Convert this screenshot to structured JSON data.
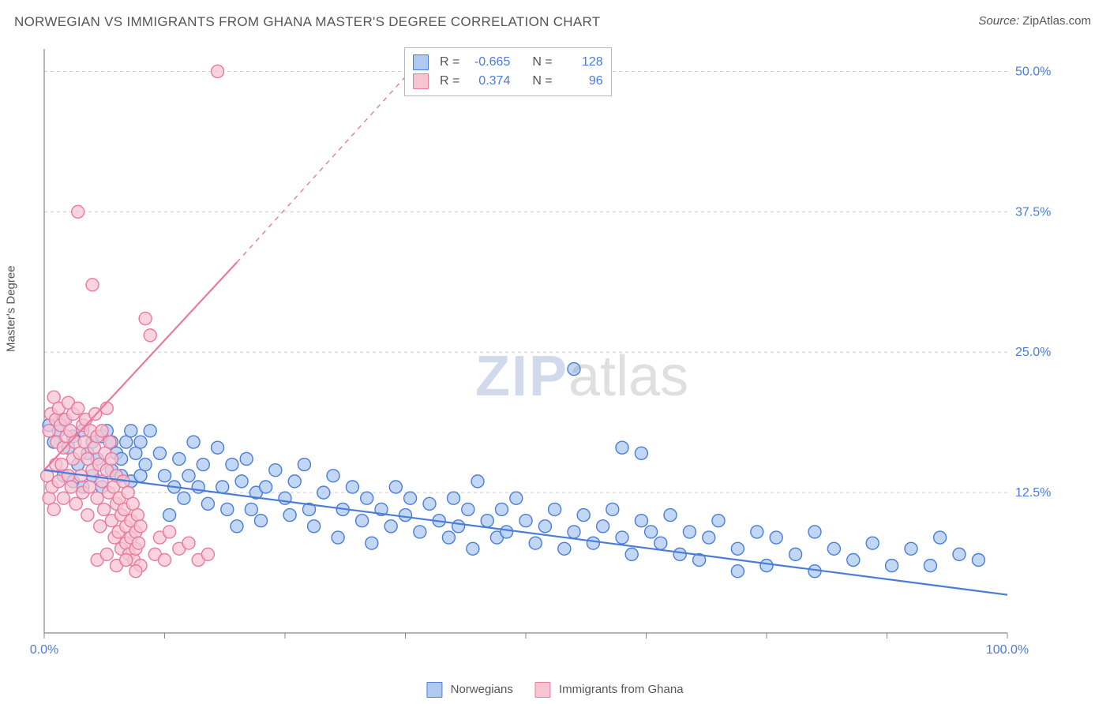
{
  "title": "NORWEGIAN VS IMMIGRANTS FROM GHANA MASTER'S DEGREE CORRELATION CHART",
  "source_label": "Source:",
  "source_value": "ZipAtlas.com",
  "ylabel": "Master's Degree",
  "watermark_a": "ZIP",
  "watermark_b": "atlas",
  "chart": {
    "type": "scatter",
    "background_color": "#ffffff",
    "grid_color": "#cccccc",
    "axis_color": "#888888",
    "xlim": [
      0,
      100
    ],
    "ylim": [
      0,
      52
    ],
    "x_ticks": [
      0,
      12.5,
      25,
      37.5,
      50,
      62.5,
      75,
      87.5,
      100
    ],
    "y_grid": [
      12.5,
      25,
      37.5,
      50
    ],
    "y_tick_labels": [
      "12.5%",
      "25.0%",
      "37.5%",
      "50.0%"
    ],
    "x_corner_labels": [
      "0.0%",
      "100.0%"
    ],
    "marker_radius": 8,
    "marker_stroke_width": 1.4,
    "line_width": 2.2,
    "series": [
      {
        "name": "Norwegians",
        "color_fill": "#aecaf0",
        "color_stroke": "#4a7dd8",
        "R": "-0.665",
        "N": "128",
        "regression": {
          "x1": 0,
          "y1": 14.5,
          "x2": 100,
          "y2": 3.4,
          "dashed_extension": false
        },
        "points": [
          [
            0.5,
            18.5
          ],
          [
            1,
            17
          ],
          [
            1.5,
            18
          ],
          [
            2,
            19
          ],
          [
            2,
            14
          ],
          [
            2.5,
            16.5
          ],
          [
            3,
            17.5
          ],
          [
            3,
            13.5
          ],
          [
            3.5,
            15
          ],
          [
            4,
            18
          ],
          [
            4,
            13
          ],
          [
            4.5,
            16
          ],
          [
            5,
            17
          ],
          [
            5,
            14
          ],
          [
            5.5,
            15.5
          ],
          [
            6,
            17.5
          ],
          [
            6,
            13
          ],
          [
            6.5,
            18
          ],
          [
            7,
            14.5
          ],
          [
            7,
            17
          ],
          [
            7.5,
            16
          ],
          [
            8,
            14
          ],
          [
            8,
            15.5
          ],
          [
            8.5,
            17
          ],
          [
            9,
            13.5
          ],
          [
            9,
            18
          ],
          [
            9.5,
            16
          ],
          [
            10,
            14
          ],
          [
            10,
            17
          ],
          [
            10.5,
            15
          ],
          [
            11,
            18
          ],
          [
            12,
            16
          ],
          [
            12.5,
            14
          ],
          [
            13,
            10.5
          ],
          [
            13.5,
            13
          ],
          [
            14,
            15.5
          ],
          [
            14.5,
            12
          ],
          [
            15,
            14
          ],
          [
            15.5,
            17
          ],
          [
            16,
            13
          ],
          [
            16.5,
            15
          ],
          [
            17,
            11.5
          ],
          [
            18,
            16.5
          ],
          [
            18.5,
            13
          ],
          [
            19,
            11
          ],
          [
            19.5,
            15
          ],
          [
            20,
            9.5
          ],
          [
            20.5,
            13.5
          ],
          [
            21,
            15.5
          ],
          [
            21.5,
            11
          ],
          [
            22,
            12.5
          ],
          [
            22.5,
            10
          ],
          [
            23,
            13
          ],
          [
            24,
            14.5
          ],
          [
            25,
            12
          ],
          [
            25.5,
            10.5
          ],
          [
            26,
            13.5
          ],
          [
            27,
            15
          ],
          [
            27.5,
            11
          ],
          [
            28,
            9.5
          ],
          [
            29,
            12.5
          ],
          [
            30,
            14
          ],
          [
            30.5,
            8.5
          ],
          [
            31,
            11
          ],
          [
            32,
            13
          ],
          [
            33,
            10
          ],
          [
            33.5,
            12
          ],
          [
            34,
            8
          ],
          [
            35,
            11
          ],
          [
            36,
            9.5
          ],
          [
            36.5,
            13
          ],
          [
            37.5,
            10.5
          ],
          [
            38,
            12
          ],
          [
            39,
            9
          ],
          [
            40,
            11.5
          ],
          [
            41,
            10
          ],
          [
            42,
            8.5
          ],
          [
            42.5,
            12
          ],
          [
            43,
            9.5
          ],
          [
            44,
            11
          ],
          [
            44.5,
            7.5
          ],
          [
            45,
            13.5
          ],
          [
            46,
            10
          ],
          [
            47,
            8.5
          ],
          [
            47.5,
            11
          ],
          [
            48,
            9
          ],
          [
            49,
            12
          ],
          [
            50,
            10
          ],
          [
            51,
            8
          ],
          [
            52,
            9.5
          ],
          [
            53,
            11
          ],
          [
            54,
            7.5
          ],
          [
            55,
            9
          ],
          [
            55,
            23.5
          ],
          [
            56,
            10.5
          ],
          [
            57,
            8
          ],
          [
            58,
            9.5
          ],
          [
            59,
            11
          ],
          [
            60,
            16.5
          ],
          [
            60,
            8.5
          ],
          [
            61,
            7
          ],
          [
            62,
            10
          ],
          [
            62,
            16
          ],
          [
            63,
            9
          ],
          [
            64,
            8
          ],
          [
            65,
            10.5
          ],
          [
            66,
            7
          ],
          [
            67,
            9
          ],
          [
            68,
            6.5
          ],
          [
            69,
            8.5
          ],
          [
            70,
            10
          ],
          [
            72,
            7.5
          ],
          [
            72,
            5.5
          ],
          [
            74,
            9
          ],
          [
            75,
            6
          ],
          [
            76,
            8.5
          ],
          [
            78,
            7
          ],
          [
            80,
            9
          ],
          [
            80,
            5.5
          ],
          [
            82,
            7.5
          ],
          [
            84,
            6.5
          ],
          [
            86,
            8
          ],
          [
            88,
            6
          ],
          [
            90,
            7.5
          ],
          [
            92,
            6
          ],
          [
            93,
            8.5
          ],
          [
            95,
            7
          ],
          [
            97,
            6.5
          ]
        ]
      },
      {
        "name": "Immigrants from Ghana",
        "color_fill": "#f7c4d2",
        "color_stroke": "#e87aa0",
        "R": "0.374",
        "N": "96",
        "regression": {
          "x1": 0,
          "y1": 14.5,
          "x2": 20,
          "y2": 33,
          "dashed_extension": true,
          "dash_x2": 38,
          "dash_y2": 50
        },
        "points": [
          [
            0.3,
            14
          ],
          [
            0.5,
            18
          ],
          [
            0.5,
            12
          ],
          [
            0.7,
            19.5
          ],
          [
            0.8,
            13
          ],
          [
            1,
            21
          ],
          [
            1,
            11
          ],
          [
            1.2,
            19
          ],
          [
            1.2,
            15
          ],
          [
            1.3,
            17
          ],
          [
            1.5,
            13.5
          ],
          [
            1.5,
            20
          ],
          [
            1.7,
            18.5
          ],
          [
            1.8,
            15
          ],
          [
            2,
            16.5
          ],
          [
            2,
            12
          ],
          [
            2.2,
            19
          ],
          [
            2.3,
            17.5
          ],
          [
            2.5,
            14
          ],
          [
            2.5,
            20.5
          ],
          [
            2.7,
            18
          ],
          [
            2.8,
            13
          ],
          [
            3,
            19.5
          ],
          [
            3,
            15.5
          ],
          [
            3.2,
            17
          ],
          [
            3.3,
            11.5
          ],
          [
            3.5,
            20
          ],
          [
            3.5,
            37.5
          ],
          [
            3.7,
            16
          ],
          [
            3.8,
            14
          ],
          [
            4,
            18.5
          ],
          [
            4,
            12.5
          ],
          [
            4.2,
            17
          ],
          [
            4.3,
            19
          ],
          [
            4.5,
            15.5
          ],
          [
            4.5,
            10.5
          ],
          [
            4.7,
            13
          ],
          [
            4.8,
            18
          ],
          [
            5,
            31
          ],
          [
            5,
            14.5
          ],
          [
            5.2,
            16.5
          ],
          [
            5.3,
            19.5
          ],
          [
            5.5,
            12
          ],
          [
            5.5,
            17.5
          ],
          [
            5.7,
            15
          ],
          [
            5.8,
            9.5
          ],
          [
            6,
            13.5
          ],
          [
            6,
            18
          ],
          [
            6.2,
            11
          ],
          [
            6.3,
            16
          ],
          [
            6.5,
            14.5
          ],
          [
            6.5,
            20
          ],
          [
            6.7,
            12.5
          ],
          [
            6.8,
            17
          ],
          [
            7,
            10
          ],
          [
            7,
            15.5
          ],
          [
            7.2,
            13
          ],
          [
            7.3,
            8.5
          ],
          [
            7.5,
            11.5
          ],
          [
            7.5,
            14
          ],
          [
            7.7,
            9
          ],
          [
            7.8,
            12
          ],
          [
            8,
            10.5
          ],
          [
            8,
            7.5
          ],
          [
            8.2,
            13.5
          ],
          [
            8.3,
            11
          ],
          [
            8.5,
            8
          ],
          [
            8.5,
            9.5
          ],
          [
            8.7,
            12.5
          ],
          [
            8.8,
            7
          ],
          [
            9,
            10
          ],
          [
            9,
            8.5
          ],
          [
            9.2,
            11.5
          ],
          [
            9.3,
            6.5
          ],
          [
            9.5,
            9
          ],
          [
            9.5,
            7.5
          ],
          [
            9.7,
            10.5
          ],
          [
            9.8,
            8
          ],
          [
            10,
            6
          ],
          [
            10,
            9.5
          ],
          [
            10.5,
            28
          ],
          [
            11,
            26.5
          ],
          [
            11.5,
            7
          ],
          [
            12,
            8.5
          ],
          [
            12.5,
            6.5
          ],
          [
            13,
            9
          ],
          [
            14,
            7.5
          ],
          [
            15,
            8
          ],
          [
            16,
            6.5
          ],
          [
            17,
            7
          ],
          [
            18,
            50
          ],
          [
            5.5,
            6.5
          ],
          [
            6.5,
            7
          ],
          [
            7.5,
            6
          ],
          [
            8.5,
            6.5
          ],
          [
            9.5,
            5.5
          ]
        ]
      }
    ]
  },
  "legend": {
    "series1": "Norwegians",
    "series2": "Immigrants from Ghana"
  },
  "corr_box": {
    "R_label": "R =",
    "N_label": "N ="
  }
}
